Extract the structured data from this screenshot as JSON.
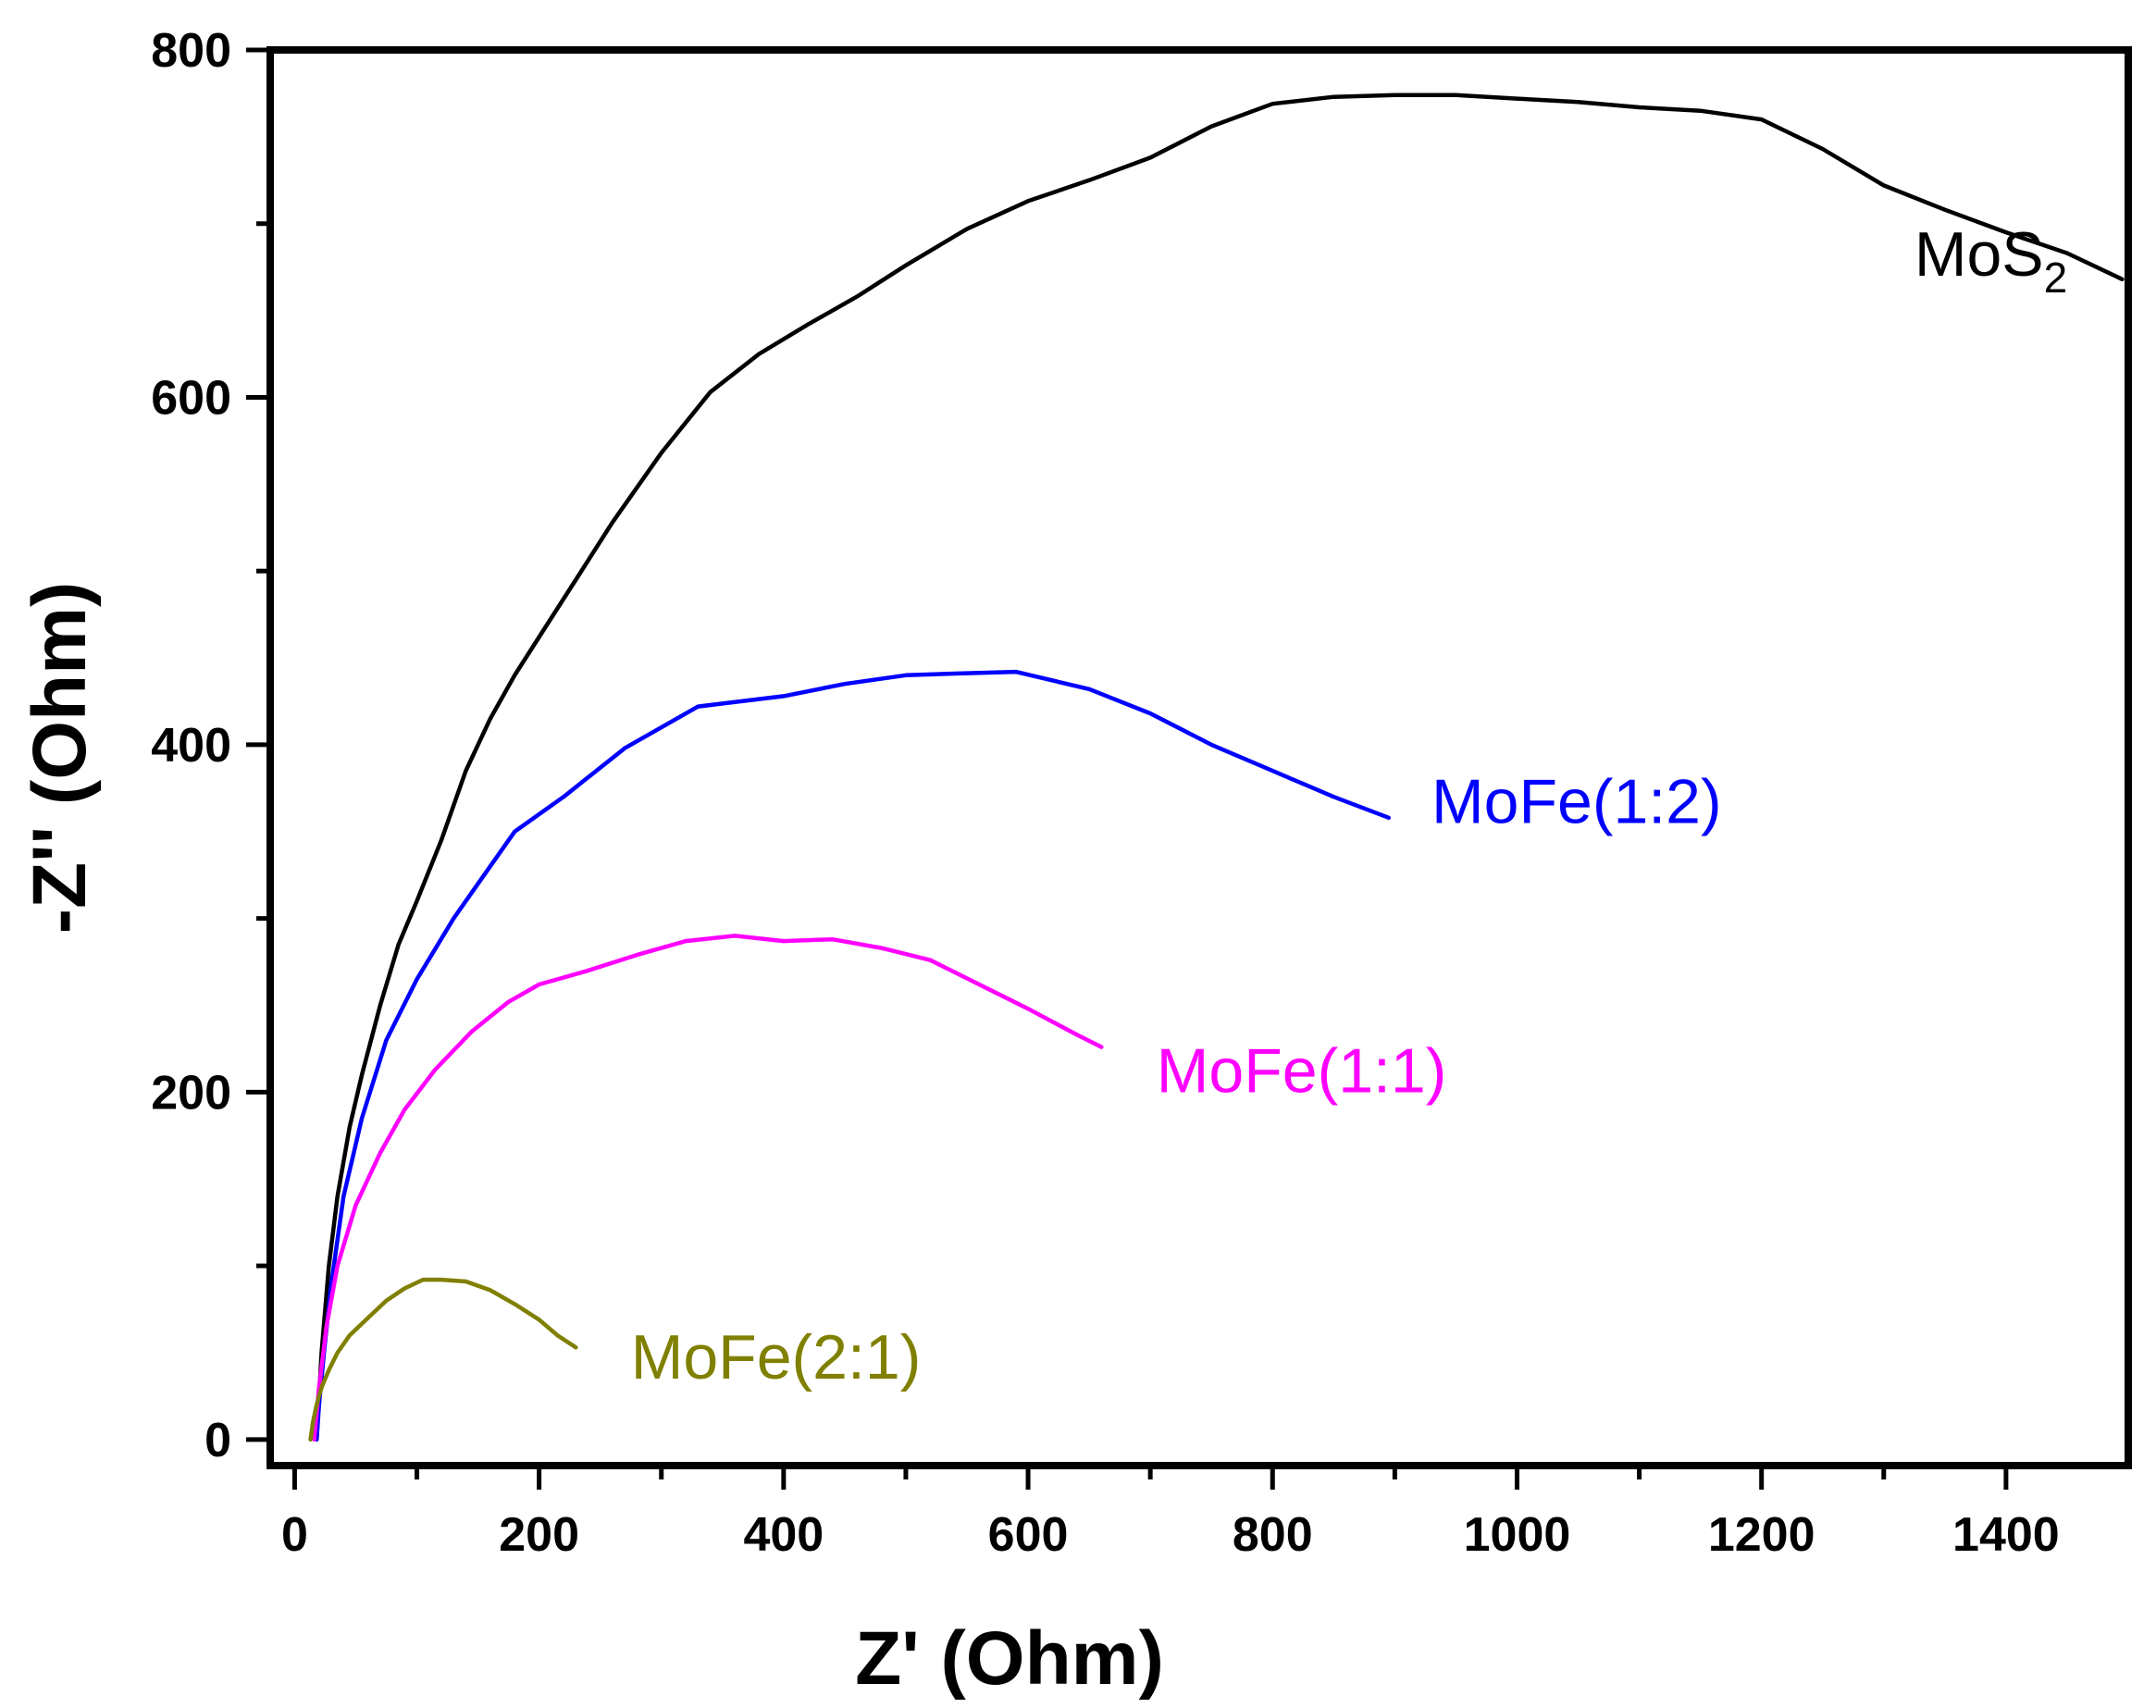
{
  "chart_data": {
    "type": "line",
    "title": "",
    "xlabel": "Z' (Ohm)",
    "ylabel": "-Z'' (Ohm)",
    "xlim": [
      -20,
      1500
    ],
    "ylim": [
      -15,
      800
    ],
    "xticks": [
      0,
      200,
      400,
      600,
      800,
      1000,
      1200,
      1400
    ],
    "yticks": [
      0,
      200,
      400,
      600,
      800
    ],
    "grid": false,
    "legend": "inline labels next to each curve",
    "series": [
      {
        "name": "MoS2",
        "label_main": "MoS",
        "label_sub": "2",
        "color": "#000000",
        "label_pos": [
          1325,
          670
        ],
        "x": [
          18,
          22,
          28,
          35,
          45,
          55,
          70,
          85,
          100,
          120,
          140,
          160,
          180,
          200,
          230,
          260,
          300,
          340,
          380,
          420,
          460,
          500,
          550,
          600,
          650,
          700,
          750,
          800,
          850,
          900,
          950,
          1000,
          1050,
          1100,
          1150,
          1200,
          1250,
          1300,
          1350,
          1400,
          1450,
          1495
        ],
        "y": [
          0,
          50,
          100,
          140,
          180,
          210,
          250,
          285,
          310,
          345,
          385,
          415,
          440,
          462,
          495,
          528,
          568,
          603,
          625,
          642,
          658,
          676,
          697,
          713,
          725,
          738,
          756,
          769,
          773,
          774,
          774,
          772,
          770,
          767,
          765,
          760,
          743,
          722,
          708,
          695,
          683,
          668
        ]
      },
      {
        "name": "MoFe(1:2)",
        "label_main": "MoFe(1:2)",
        "color": "#0000ff",
        "label_pos": [
          930,
          355
        ],
        "x": [
          18,
          20,
          24,
          30,
          40,
          55,
          75,
          100,
          130,
          160,
          180,
          220,
          270,
          330,
          400,
          450,
          500,
          540,
          590,
          650,
          700,
          750,
          800,
          850,
          895
        ],
        "y": [
          0,
          20,
          50,
          90,
          140,
          185,
          230,
          265,
          300,
          330,
          350,
          370,
          398,
          422,
          428,
          435,
          440,
          441,
          442,
          432,
          418,
          400,
          385,
          370,
          358
        ]
      },
      {
        "name": "MoFe(1:1)",
        "label_main": "MoFe(1:1)",
        "color": "#ff00ff",
        "label_pos": [
          705,
          200
        ],
        "x": [
          16,
          20,
          26,
          35,
          50,
          70,
          90,
          115,
          145,
          175,
          200,
          240,
          280,
          320,
          360,
          400,
          440,
          480,
          520,
          560,
          600,
          640,
          660
        ],
        "y": [
          0,
          30,
          65,
          100,
          135,
          165,
          190,
          213,
          235,
          252,
          262,
          270,
          279,
          287,
          290,
          287,
          288,
          283,
          276,
          262,
          248,
          233,
          226
        ]
      },
      {
        "name": "MoFe(2:1)",
        "label_main": "MoFe(2:1)",
        "color": "#808000",
        "label_pos": [
          275,
          35
        ],
        "x": [
          13,
          15,
          18,
          22,
          28,
          35,
          45,
          60,
          75,
          90,
          105,
          120,
          140,
          160,
          180,
          200,
          215,
          230
        ],
        "y": [
          0,
          10,
          20,
          30,
          40,
          50,
          60,
          70,
          80,
          87,
          92,
          92,
          91,
          86,
          78,
          69,
          60,
          53
        ]
      }
    ]
  }
}
